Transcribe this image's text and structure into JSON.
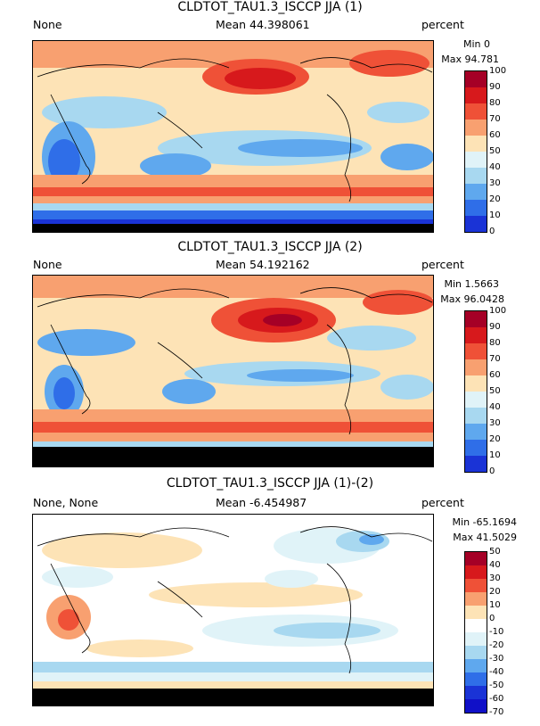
{
  "panels": [
    {
      "title": "CLDTOT_TAU1.3_ISCCP JJA (1)",
      "left_label": "None",
      "mean_label": "Mean 44.398061",
      "units": "percent",
      "min_label": "Min 0",
      "max_label": "Max 94.781",
      "ticks": [
        "100",
        "90",
        "80",
        "70",
        "60",
        "50",
        "40",
        "30",
        "20",
        "10",
        "0"
      ],
      "colors": [
        "#a50026",
        "#d7191c",
        "#ef5137",
        "#f8a070",
        "#fde3b6",
        "#e0f3f8",
        "#a8d8f0",
        "#5fa8ee",
        "#2f6ee8",
        "#1a33d6"
      ]
    },
    {
      "title": "CLDTOT_TAU1.3_ISCCP JJA (2)",
      "left_label": "None",
      "mean_label": "Mean 54.192162",
      "units": "percent",
      "min_label": "Min 1.5663",
      "max_label": "Max 96.0428",
      "ticks": [
        "100",
        "90",
        "80",
        "70",
        "60",
        "50",
        "40",
        "30",
        "20",
        "10",
        "0"
      ],
      "colors": [
        "#a50026",
        "#d7191c",
        "#ef5137",
        "#f8a070",
        "#fde3b6",
        "#e0f3f8",
        "#a8d8f0",
        "#5fa8ee",
        "#2f6ee8",
        "#1a33d6"
      ]
    },
    {
      "title": "CLDTOT_TAU1.3_ISCCP JJA (1)-(2)",
      "left_label": "None, None",
      "mean_label": "Mean -6.454987",
      "units": "percent",
      "min_label": "Min -65.1694",
      "max_label": "Max 41.5029",
      "ticks": [
        "50",
        "40",
        "30",
        "20",
        "10",
        "0",
        "-10",
        "-20",
        "-30",
        "-40",
        "-50",
        "-60",
        "-70"
      ],
      "colors": [
        "#a50026",
        "#d7191c",
        "#ef5137",
        "#f8a070",
        "#fde3b6",
        "#ffffff",
        "#e0f3f8",
        "#a8d8f0",
        "#5fa8ee",
        "#2f6ee8",
        "#1a33d6",
        "#1010c8"
      ]
    }
  ]
}
